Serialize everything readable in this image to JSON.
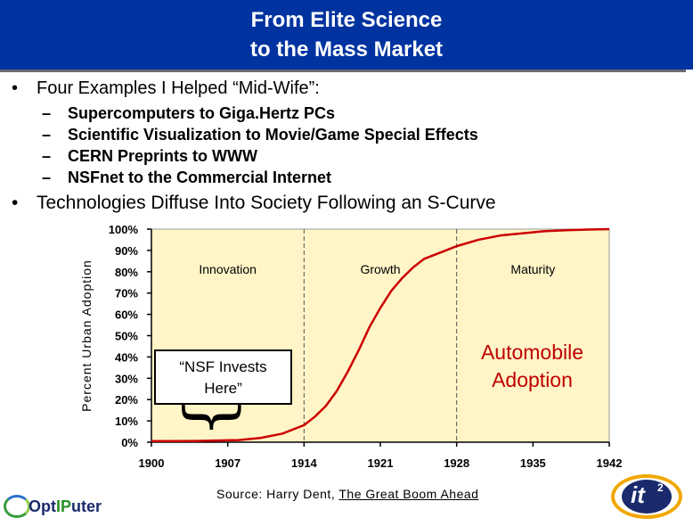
{
  "slide": {
    "title_line1": "From Elite Science",
    "title_line2": "to the Mass Market",
    "bullet1": "Four Examples I Helped “Mid-Wife”:",
    "sub_items": [
      "Supercomputers to Giga.Hertz PCs",
      "Scientific Visualization to Movie/Game Special Effects",
      "CERN Preprints to WWW",
      "NSFnet to the Commercial Internet"
    ],
    "bullet_marker": "•",
    "dash_marker": "–",
    "bullet2": "Technologies Diffuse Into Society Following an S-Curve",
    "callout_line1": "“NSF Invests",
    "callout_line2": "Here”",
    "overlay_line1": "Automobile",
    "overlay_line2": "Adoption",
    "source_prefix": "Source: Harry Dent, ",
    "source_book": "The Great Boom Ahead",
    "logo_left_part1": "Opt",
    "logo_left_part2": "IP",
    "logo_left_part3": "uter",
    "logo_right_text": "it",
    "logo_right_sup": "2"
  },
  "colors": {
    "title_bg": "#0033a0",
    "plot_bg": "#fff5c7",
    "curve": "#cc0000",
    "axis_text": "#000000",
    "overlay_text": "#c00000"
  },
  "chart_data": {
    "type": "line",
    "ylabel": "Percent Urban Adoption",
    "xlabel": "",
    "x_ticks": [
      "1900",
      "1907",
      "1914",
      "1921",
      "1928",
      "1935",
      "1942"
    ],
    "y_ticks": [
      "0%",
      "10%",
      "20%",
      "30%",
      "40%",
      "50%",
      "60%",
      "70%",
      "80%",
      "90%",
      "100%"
    ],
    "xlim": [
      1900,
      1942
    ],
    "ylim": [
      0,
      100
    ],
    "phases": [
      {
        "name": "Innovation",
        "start": 1900,
        "end": 1914
      },
      {
        "name": "Growth",
        "start": 1914,
        "end": 1928
      },
      {
        "name": "Maturity",
        "start": 1928,
        "end": 1942
      }
    ],
    "phase_boundaries": [
      1914,
      1928
    ],
    "series": [
      {
        "x": [
          1900,
          1902,
          1904,
          1906,
          1908,
          1910,
          1912,
          1914,
          1915,
          1916,
          1917,
          1918,
          1919,
          1920,
          1921,
          1922,
          1923,
          1924,
          1925,
          1926,
          1927,
          1928,
          1930,
          1932,
          1934,
          1936,
          1938,
          1940,
          1942
        ],
        "values": [
          0.5,
          0.5,
          0.6,
          0.8,
          1,
          2,
          4,
          8,
          12,
          17,
          24,
          33,
          43,
          54,
          63,
          71,
          77,
          82,
          86,
          88,
          90,
          92,
          95,
          97,
          98,
          99,
          99.5,
          99.8,
          100
        ]
      }
    ]
  }
}
